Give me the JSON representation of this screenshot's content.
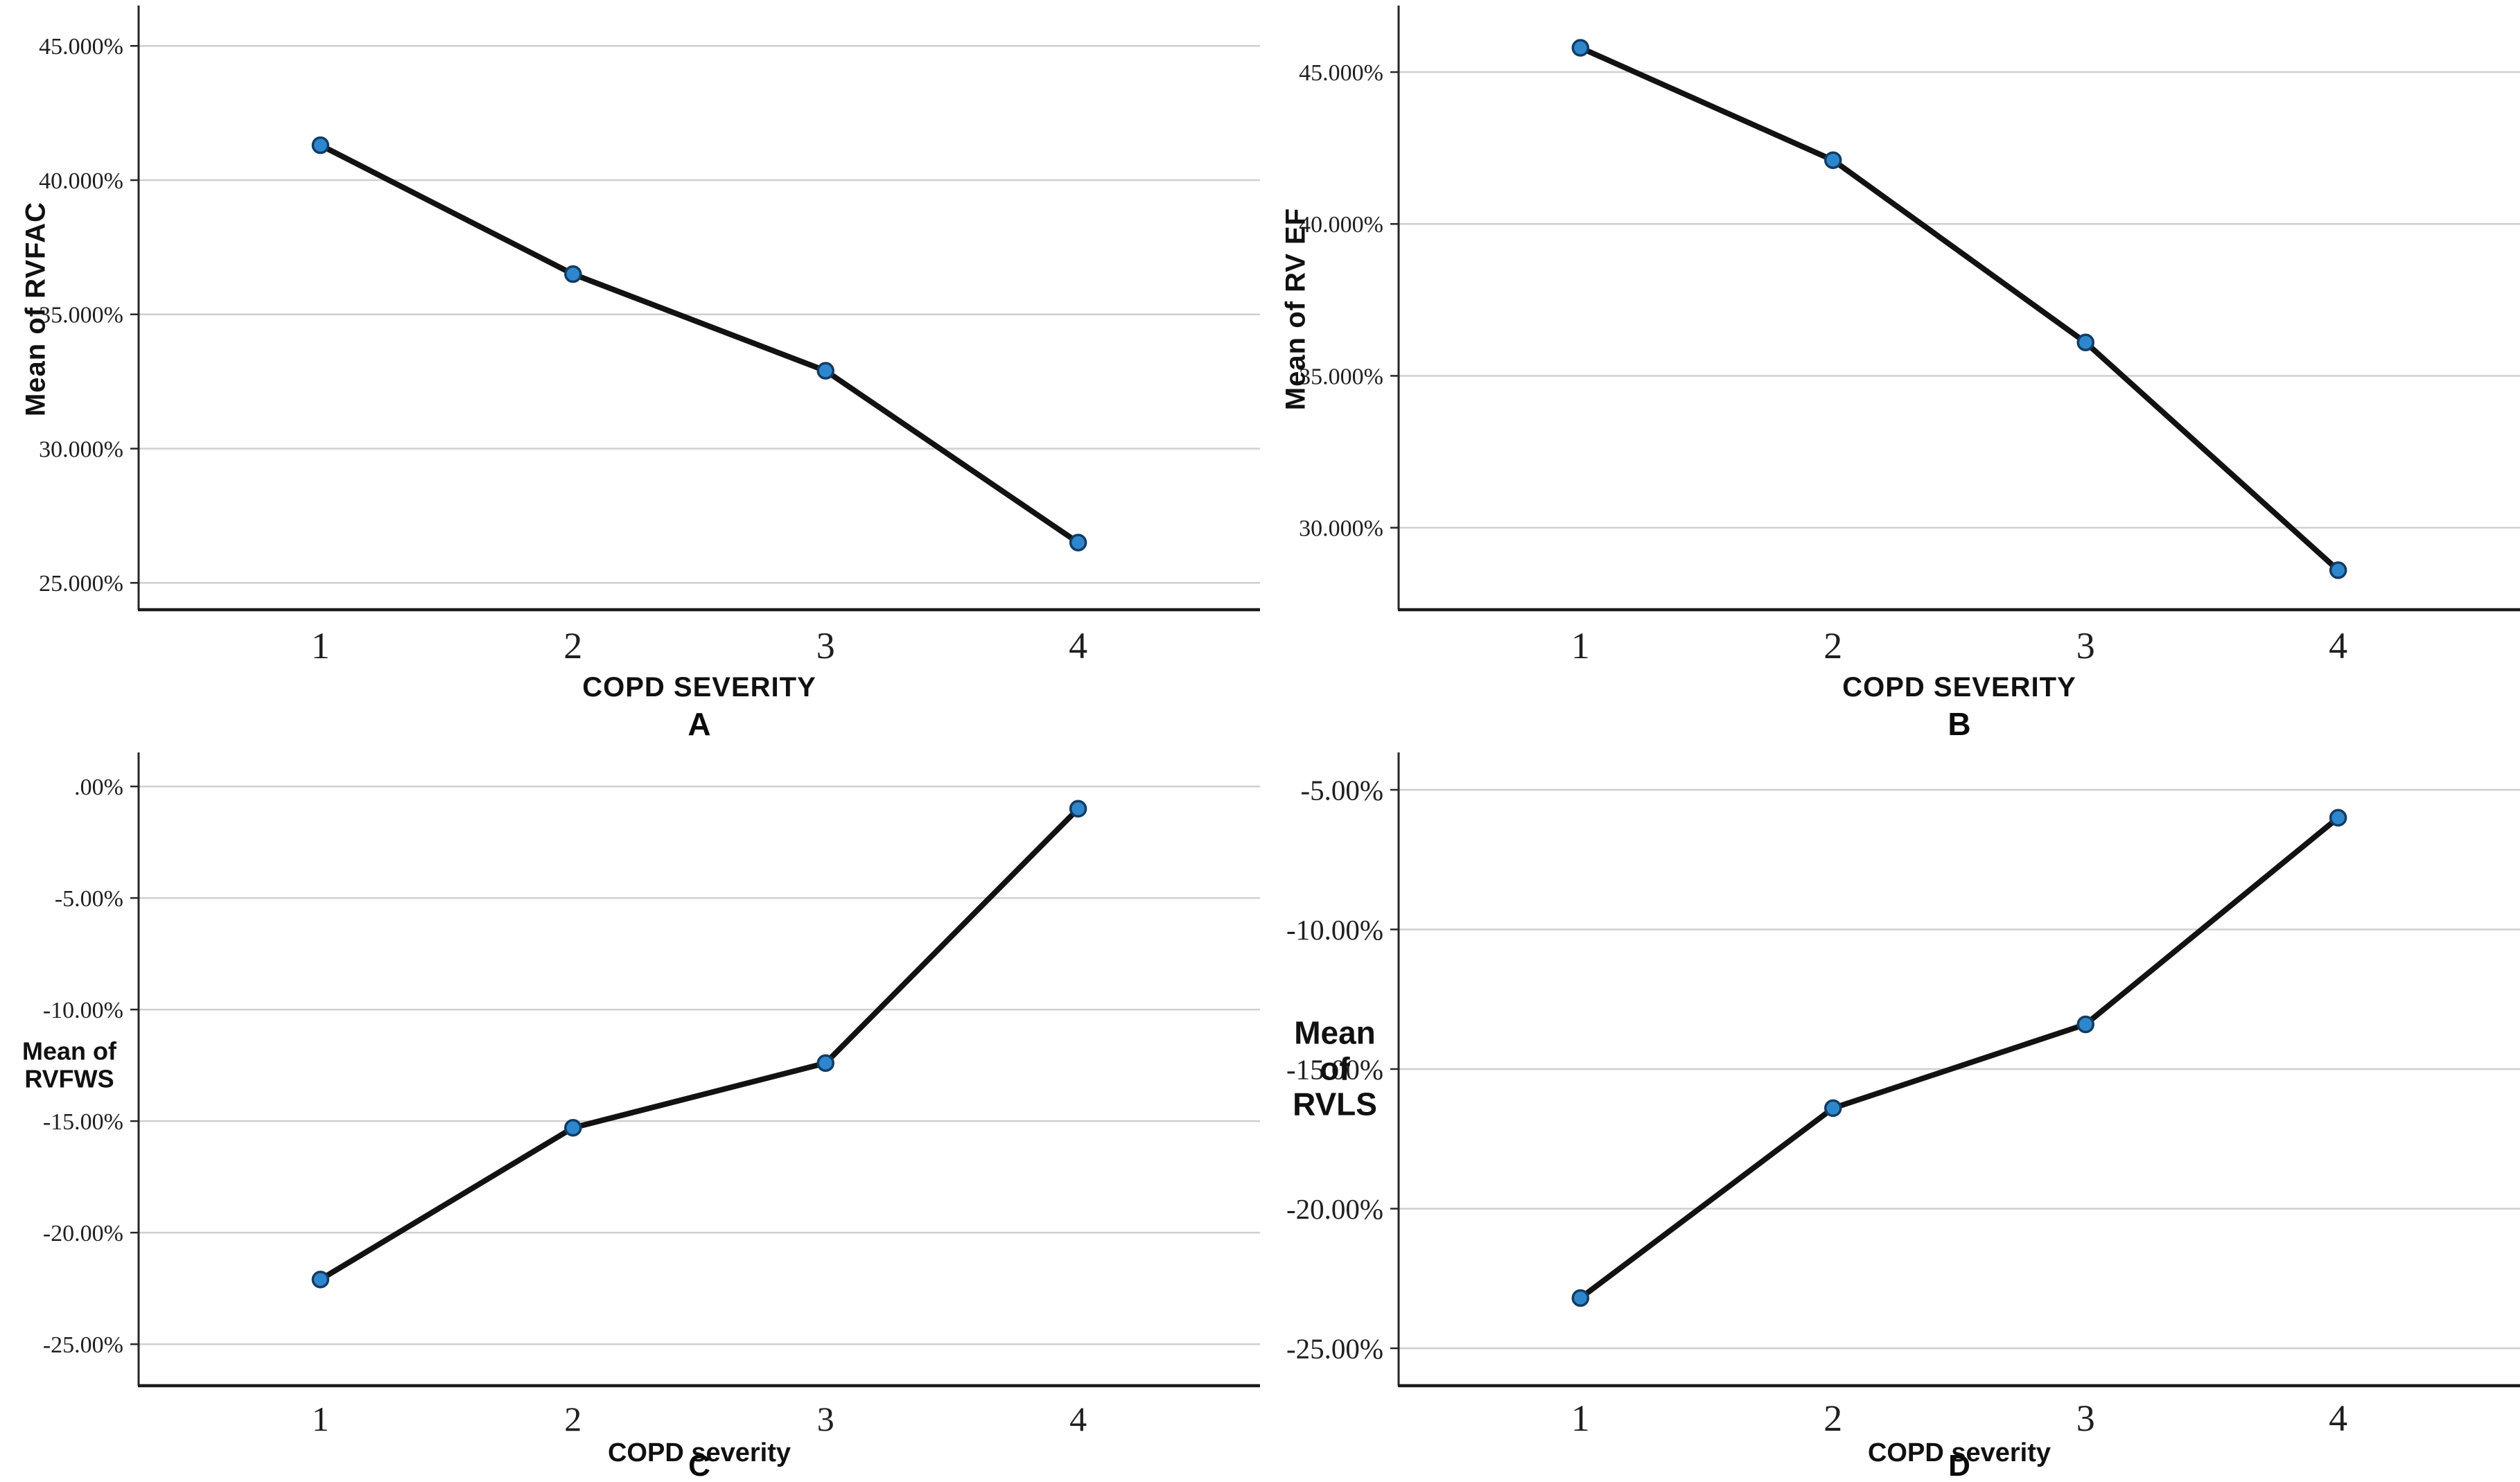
{
  "figure": {
    "background": "#ffffff",
    "line_color": "#121212",
    "marker_fill": "#2e87cc",
    "marker_stroke": "#123c63",
    "grid_color": "#cfcfcf",
    "axis_color": "#262626",
    "tick_text_color": "#1f1f1f"
  },
  "chart_data": [
    {
      "type": "line",
      "panel_letter": "A",
      "title": "",
      "xlabel": "COPD SEVERITY",
      "ylabel": "Mean of RVFAC",
      "ylabel_display": "Mean of RVFAC",
      "ylabel_orientation": "vertical",
      "x": [
        1,
        2,
        3,
        4
      ],
      "x_tick_labels": [
        "1",
        "2",
        "3",
        "4"
      ],
      "values": [
        41.3,
        36.5,
        32.9,
        26.5
      ],
      "y_tick_labels": [
        "45.000%",
        "40.000%",
        "35.000%",
        "30.000%",
        "25.000%"
      ],
      "y_tick_values": [
        45,
        40,
        35,
        30,
        25
      ],
      "ylim": [
        24.0,
        46.4
      ],
      "xlim": [
        0.28,
        4.72
      ],
      "grid": "horizontal",
      "legend": "none"
    },
    {
      "type": "line",
      "panel_letter": "B",
      "title": "",
      "xlabel": "COPD SEVERITY",
      "ylabel": "Mean of RV EF",
      "ylabel_display": "Mean of RV EF",
      "ylabel_orientation": "vertical",
      "x": [
        1,
        2,
        3,
        4
      ],
      "x_tick_labels": [
        "1",
        "2",
        "3",
        "4"
      ],
      "values": [
        45.8,
        42.1,
        36.1,
        28.6
      ],
      "y_tick_labels": [
        "45.000%",
        "40.000%",
        "35.000%",
        "30.000%"
      ],
      "y_tick_values": [
        45,
        40,
        35,
        30
      ],
      "ylim": [
        27.3,
        47.1
      ],
      "xlim": [
        0.28,
        4.72
      ],
      "grid": "horizontal",
      "legend": "none"
    },
    {
      "type": "line",
      "panel_letter": "C",
      "title": "",
      "xlabel": "COPD severity",
      "ylabel": "Mean of RVFWS",
      "ylabel_display": "Mean of\nRVFWS",
      "ylabel_orientation": "horizontal",
      "x": [
        1,
        2,
        3,
        4
      ],
      "x_tick_labels": [
        "1",
        "2",
        "3",
        "4"
      ],
      "values": [
        -22.1,
        -15.3,
        -12.4,
        -1.0
      ],
      "y_tick_labels": [
        ".00%",
        "-5.00%",
        "-10.00%",
        "-15.00%",
        "-20.00%",
        "-25.00%"
      ],
      "y_tick_values": [
        0,
        -5,
        -10,
        -15,
        -20,
        -25
      ],
      "ylim": [
        -26.86,
        1.4
      ],
      "xlim": [
        0.28,
        4.72
      ],
      "grid": "horizontal",
      "legend": "none"
    },
    {
      "type": "line",
      "panel_letter": "D",
      "title": "",
      "xlabel": "COPD severity",
      "ylabel": "Mean of RVLS",
      "ylabel_display": "Mean\nof\nRVLS",
      "ylabel_orientation": "horizontal",
      "x": [
        1,
        2,
        3,
        4
      ],
      "x_tick_labels": [
        "1",
        "2",
        "3",
        "4"
      ],
      "values": [
        -23.2,
        -16.4,
        -13.4,
        -6.0
      ],
      "y_tick_labels": [
        "-5.00%",
        "-10.00%",
        "-15.00%",
        "-20.00%",
        "-25.00%"
      ],
      "y_tick_values": [
        -5,
        -10,
        -15,
        -20,
        -25
      ],
      "ylim": [
        -26.34,
        -3.76
      ],
      "xlim": [
        0.28,
        4.72
      ],
      "grid": "horizontal",
      "legend": "none"
    }
  ]
}
